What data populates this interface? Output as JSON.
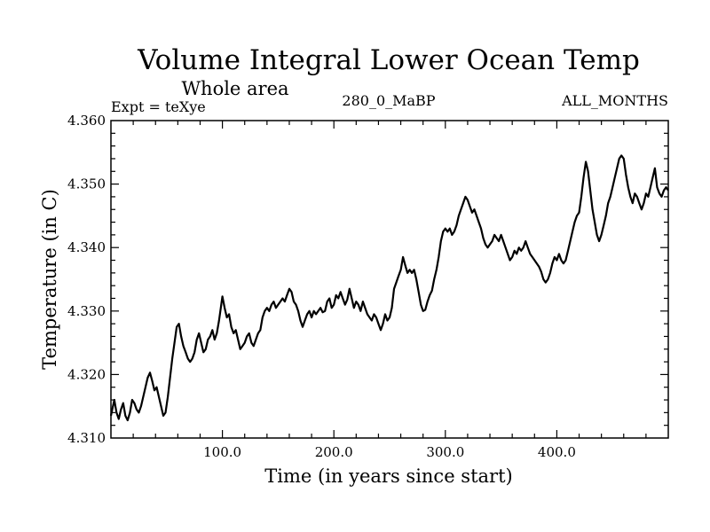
{
  "chart_data": {
    "type": "line",
    "title": "Volume Integral Lower Ocean Temp",
    "subtitle": "Whole area",
    "left_label": "Expt = teXye",
    "center_label": "280_0_MaBP",
    "right_label": "ALL_MONTHS",
    "xlabel": "Time (in years since start)",
    "ylabel": "Temperature (in C)",
    "xlim": [
      0,
      500
    ],
    "ylim": [
      4.31,
      4.36
    ],
    "grid": false,
    "line_color": "#000000",
    "x_ticks": [
      {
        "value": 100,
        "label": "100.0"
      },
      {
        "value": 200,
        "label": "200.0"
      },
      {
        "value": 300,
        "label": "300.0"
      },
      {
        "value": 400,
        "label": "400.0"
      }
    ],
    "y_ticks": [
      {
        "value": 4.31,
        "label": "4.310"
      },
      {
        "value": 4.32,
        "label": "4.320"
      },
      {
        "value": 4.33,
        "label": "4.330"
      },
      {
        "value": 4.34,
        "label": "4.340"
      },
      {
        "value": 4.35,
        "label": "4.350"
      },
      {
        "value": 4.36,
        "label": "4.360"
      }
    ],
    "series": [
      {
        "values": [
          [
            0,
            4.3135
          ],
          [
            3,
            4.316
          ],
          [
            5,
            4.314
          ],
          [
            7,
            4.313
          ],
          [
            9,
            4.3145
          ],
          [
            11,
            4.3155
          ],
          [
            13,
            4.3135
          ],
          [
            15,
            4.3128
          ],
          [
            17,
            4.314
          ],
          [
            19,
            4.316
          ],
          [
            21,
            4.3155
          ],
          [
            23,
            4.3145
          ],
          [
            25,
            4.314
          ],
          [
            27,
            4.315
          ],
          [
            29,
            4.3165
          ],
          [
            31,
            4.318
          ],
          [
            33,
            4.3195
          ],
          [
            35,
            4.3203
          ],
          [
            37,
            4.319
          ],
          [
            39,
            4.3175
          ],
          [
            41,
            4.318
          ],
          [
            43,
            4.3165
          ],
          [
            45,
            4.315
          ],
          [
            47,
            4.3135
          ],
          [
            49,
            4.314
          ],
          [
            51,
            4.3165
          ],
          [
            53,
            4.3195
          ],
          [
            55,
            4.3225
          ],
          [
            57,
            4.325
          ],
          [
            59,
            4.3275
          ],
          [
            61,
            4.328
          ],
          [
            63,
            4.326
          ],
          [
            65,
            4.3245
          ],
          [
            67,
            4.3235
          ],
          [
            69,
            4.3225
          ],
          [
            71,
            4.322
          ],
          [
            73,
            4.3225
          ],
          [
            75,
            4.3235
          ],
          [
            77,
            4.3255
          ],
          [
            79,
            4.3265
          ],
          [
            81,
            4.325
          ],
          [
            83,
            4.3235
          ],
          [
            85,
            4.324
          ],
          [
            87,
            4.3255
          ],
          [
            89,
            4.326
          ],
          [
            91,
            4.327
          ],
          [
            93,
            4.3255
          ],
          [
            95,
            4.3265
          ],
          [
            97,
            4.3285
          ],
          [
            99,
            4.331
          ],
          [
            100,
            4.3323
          ],
          [
            102,
            4.3305
          ],
          [
            104,
            4.329
          ],
          [
            106,
            4.3295
          ],
          [
            108,
            4.3275
          ],
          [
            110,
            4.3265
          ],
          [
            112,
            4.327
          ],
          [
            114,
            4.3255
          ],
          [
            116,
            4.324
          ],
          [
            118,
            4.3245
          ],
          [
            120,
            4.325
          ],
          [
            122,
            4.326
          ],
          [
            124,
            4.3265
          ],
          [
            126,
            4.325
          ],
          [
            128,
            4.3245
          ],
          [
            130,
            4.3255
          ],
          [
            132,
            4.3265
          ],
          [
            134,
            4.327
          ],
          [
            136,
            4.329
          ],
          [
            138,
            4.33
          ],
          [
            140,
            4.3305
          ],
          [
            142,
            4.33
          ],
          [
            144,
            4.331
          ],
          [
            146,
            4.3315
          ],
          [
            148,
            4.3305
          ],
          [
            150,
            4.331
          ],
          [
            152,
            4.3315
          ],
          [
            154,
            4.332
          ],
          [
            156,
            4.3315
          ],
          [
            158,
            4.3325
          ],
          [
            160,
            4.3335
          ],
          [
            162,
            4.333
          ],
          [
            164,
            4.3315
          ],
          [
            166,
            4.331
          ],
          [
            168,
            4.33
          ],
          [
            170,
            4.3285
          ],
          [
            172,
            4.3275
          ],
          [
            174,
            4.3285
          ],
          [
            176,
            4.3295
          ],
          [
            178,
            4.33
          ],
          [
            180,
            4.329
          ],
          [
            182,
            4.33
          ],
          [
            184,
            4.3295
          ],
          [
            186,
            4.33
          ],
          [
            188,
            4.3305
          ],
          [
            190,
            4.3298
          ],
          [
            192,
            4.33
          ],
          [
            194,
            4.3315
          ],
          [
            196,
            4.332
          ],
          [
            198,
            4.3305
          ],
          [
            200,
            4.331
          ],
          [
            202,
            4.3325
          ],
          [
            204,
            4.332
          ],
          [
            206,
            4.333
          ],
          [
            208,
            4.332
          ],
          [
            210,
            4.331
          ],
          [
            212,
            4.3318
          ],
          [
            214,
            4.3335
          ],
          [
            216,
            4.332
          ],
          [
            218,
            4.3305
          ],
          [
            220,
            4.3315
          ],
          [
            222,
            4.331
          ],
          [
            224,
            4.33
          ],
          [
            226,
            4.3315
          ],
          [
            228,
            4.3305
          ],
          [
            230,
            4.3295
          ],
          [
            232,
            4.329
          ],
          [
            234,
            4.3285
          ],
          [
            236,
            4.3295
          ],
          [
            238,
            4.329
          ],
          [
            240,
            4.328
          ],
          [
            242,
            4.327
          ],
          [
            244,
            4.328
          ],
          [
            246,
            4.3295
          ],
          [
            248,
            4.3285
          ],
          [
            250,
            4.329
          ],
          [
            252,
            4.3305
          ],
          [
            254,
            4.3335
          ],
          [
            256,
            4.3345
          ],
          [
            258,
            4.3355
          ],
          [
            260,
            4.3365
          ],
          [
            262,
            4.3385
          ],
          [
            264,
            4.3372
          ],
          [
            266,
            4.336
          ],
          [
            268,
            4.3365
          ],
          [
            270,
            4.336
          ],
          [
            272,
            4.3365
          ],
          [
            274,
            4.335
          ],
          [
            276,
            4.333
          ],
          [
            278,
            4.331
          ],
          [
            280,
            4.33
          ],
          [
            282,
            4.3302
          ],
          [
            284,
            4.3315
          ],
          [
            286,
            4.3325
          ],
          [
            288,
            4.3332
          ],
          [
            290,
            4.335
          ],
          [
            292,
            4.3365
          ],
          [
            294,
            4.3385
          ],
          [
            296,
            4.341
          ],
          [
            298,
            4.3425
          ],
          [
            300,
            4.343
          ],
          [
            302,
            4.3425
          ],
          [
            304,
            4.343
          ],
          [
            306,
            4.342
          ],
          [
            308,
            4.3425
          ],
          [
            310,
            4.3435
          ],
          [
            312,
            4.345
          ],
          [
            314,
            4.346
          ],
          [
            316,
            4.347
          ],
          [
            318,
            4.348
          ],
          [
            320,
            4.3475
          ],
          [
            322,
            4.3465
          ],
          [
            324,
            4.3455
          ],
          [
            326,
            4.346
          ],
          [
            328,
            4.345
          ],
          [
            330,
            4.344
          ],
          [
            332,
            4.343
          ],
          [
            334,
            4.3415
          ],
          [
            336,
            4.3405
          ],
          [
            338,
            4.34
          ],
          [
            340,
            4.3405
          ],
          [
            342,
            4.341
          ],
          [
            344,
            4.342
          ],
          [
            346,
            4.3415
          ],
          [
            348,
            4.341
          ],
          [
            350,
            4.342
          ],
          [
            352,
            4.341
          ],
          [
            354,
            4.34
          ],
          [
            356,
            4.339
          ],
          [
            358,
            4.338
          ],
          [
            360,
            4.3385
          ],
          [
            362,
            4.3395
          ],
          [
            364,
            4.339
          ],
          [
            366,
            4.34
          ],
          [
            368,
            4.3395
          ],
          [
            370,
            4.34
          ],
          [
            372,
            4.341
          ],
          [
            374,
            4.34
          ],
          [
            376,
            4.339
          ],
          [
            378,
            4.3385
          ],
          [
            380,
            4.338
          ],
          [
            382,
            4.3375
          ],
          [
            384,
            4.337
          ],
          [
            386,
            4.3362
          ],
          [
            388,
            4.335
          ],
          [
            390,
            4.3345
          ],
          [
            392,
            4.335
          ],
          [
            394,
            4.336
          ],
          [
            396,
            4.3375
          ],
          [
            398,
            4.3385
          ],
          [
            400,
            4.338
          ],
          [
            402,
            4.339
          ],
          [
            404,
            4.338
          ],
          [
            406,
            4.3375
          ],
          [
            408,
            4.338
          ],
          [
            410,
            4.3395
          ],
          [
            412,
            4.341
          ],
          [
            414,
            4.3425
          ],
          [
            416,
            4.344
          ],
          [
            418,
            4.345
          ],
          [
            420,
            4.3455
          ],
          [
            422,
            4.348
          ],
          [
            424,
            4.351
          ],
          [
            426,
            4.3535
          ],
          [
            428,
            4.352
          ],
          [
            430,
            4.349
          ],
          [
            432,
            4.346
          ],
          [
            434,
            4.344
          ],
          [
            436,
            4.342
          ],
          [
            438,
            4.341
          ],
          [
            440,
            4.342
          ],
          [
            442,
            4.3435
          ],
          [
            444,
            4.345
          ],
          [
            446,
            4.347
          ],
          [
            448,
            4.348
          ],
          [
            450,
            4.3495
          ],
          [
            452,
            4.351
          ],
          [
            454,
            4.3525
          ],
          [
            456,
            4.354
          ],
          [
            458,
            4.3545
          ],
          [
            460,
            4.354
          ],
          [
            462,
            4.3515
          ],
          [
            464,
            4.3495
          ],
          [
            466,
            4.348
          ],
          [
            468,
            4.347
          ],
          [
            470,
            4.3485
          ],
          [
            472,
            4.348
          ],
          [
            474,
            4.347
          ],
          [
            476,
            4.346
          ],
          [
            478,
            4.347
          ],
          [
            480,
            4.3485
          ],
          [
            482,
            4.348
          ],
          [
            484,
            4.3495
          ],
          [
            486,
            4.351
          ],
          [
            488,
            4.3525
          ],
          [
            490,
            4.3495
          ],
          [
            492,
            4.3485
          ],
          [
            494,
            4.348
          ],
          [
            496,
            4.349
          ],
          [
            498,
            4.3495
          ],
          [
            500,
            4.349
          ]
        ]
      }
    ]
  }
}
